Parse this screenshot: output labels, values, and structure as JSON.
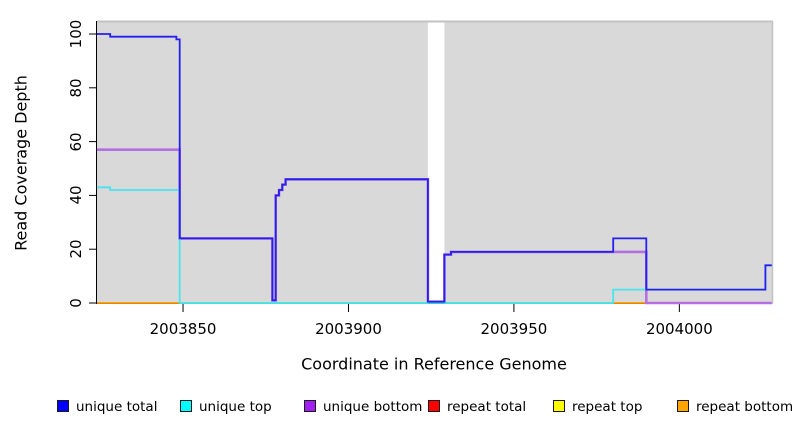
{
  "chart_data": {
    "type": "line",
    "subtype": "step-coverage-plot",
    "title": "",
    "xlabel": "Coordinate in Reference Genome",
    "ylabel": "Read Coverage Depth",
    "xlim": [
      2003824,
      2004028
    ],
    "ylim": [
      0,
      100
    ],
    "x_ticks": [
      2003850,
      2003900,
      2003950,
      2004000
    ],
    "y_ticks": [
      0,
      20,
      40,
      60,
      80,
      100
    ],
    "grid": "off",
    "legend_position": "bottom",
    "plot_bg_color": "#d9d9d9",
    "plot_border_color": "#c2c2c2",
    "axis_color": "#000000",
    "mask_region": {
      "x0": 2003924,
      "x1": 2003929,
      "color": "#ffffff"
    },
    "series": [
      {
        "name": "unique bottom",
        "color": "#b46fe0",
        "width": 2.6,
        "points": [
          [
            2003824,
            57
          ],
          [
            2003849,
            24
          ],
          [
            2003877,
            1
          ],
          [
            2003878,
            40
          ],
          [
            2003879,
            42
          ],
          [
            2003880,
            44
          ],
          [
            2003881,
            46
          ],
          [
            2003924,
            0.5
          ],
          [
            2003929,
            18
          ],
          [
            2003931,
            19
          ],
          [
            2003990,
            0
          ]
        ]
      },
      {
        "name": "unique top",
        "color": "#49e4ee",
        "width": 1.8,
        "points": [
          [
            2003824,
            43
          ],
          [
            2003828,
            42
          ],
          [
            2003849,
            0
          ],
          [
            2003980,
            5
          ],
          [
            2004026,
            14
          ]
        ]
      },
      {
        "name": "unique total",
        "color": "#2420ee",
        "width": 1.8,
        "points": [
          [
            2003824,
            100
          ],
          [
            2003828,
            99
          ],
          [
            2003848,
            98
          ],
          [
            2003849,
            24
          ],
          [
            2003877,
            1
          ],
          [
            2003878,
            40
          ],
          [
            2003879,
            42
          ],
          [
            2003880,
            44
          ],
          [
            2003881,
            46
          ],
          [
            2003924,
            0.5
          ],
          [
            2003929,
            18
          ],
          [
            2003931,
            19
          ],
          [
            2003980,
            24
          ],
          [
            2003990,
            5
          ],
          [
            2004026,
            14
          ]
        ]
      }
    ],
    "baseline_segments": [
      {
        "name": "repeat-bottom-baseline-left",
        "x0": 2003824,
        "x1": 2003849,
        "y": 0,
        "color": "#ff9d00"
      },
      {
        "name": "unique-top-repeat-top-baseline-left",
        "x0": 2003849,
        "x1": 2003924,
        "y": 0,
        "color": "#7fe07f"
      },
      {
        "name": "unique-top-repeat-top-baseline-right",
        "x0": 2003929,
        "x1": 2003980,
        "y": 0,
        "color": "#7fe07f"
      },
      {
        "name": "repeat-bottom-baseline-mid",
        "x0": 2003980,
        "x1": 2003990,
        "y": 0,
        "color": "#ff9d00"
      },
      {
        "name": "repeat-total-baseline-right",
        "x0": 2003990,
        "x1": 2004028,
        "y": 0,
        "color": "#e0506e"
      }
    ],
    "legend": [
      {
        "label": "unique total",
        "color": "#0000ff"
      },
      {
        "label": "unique top",
        "color": "#00ffff"
      },
      {
        "label": "unique bottom",
        "color": "#a020f0"
      },
      {
        "label": "repeat total",
        "color": "#ff0000"
      },
      {
        "label": "repeat top",
        "color": "#ffff00"
      },
      {
        "label": "repeat bottom",
        "color": "#ffa500"
      }
    ]
  }
}
